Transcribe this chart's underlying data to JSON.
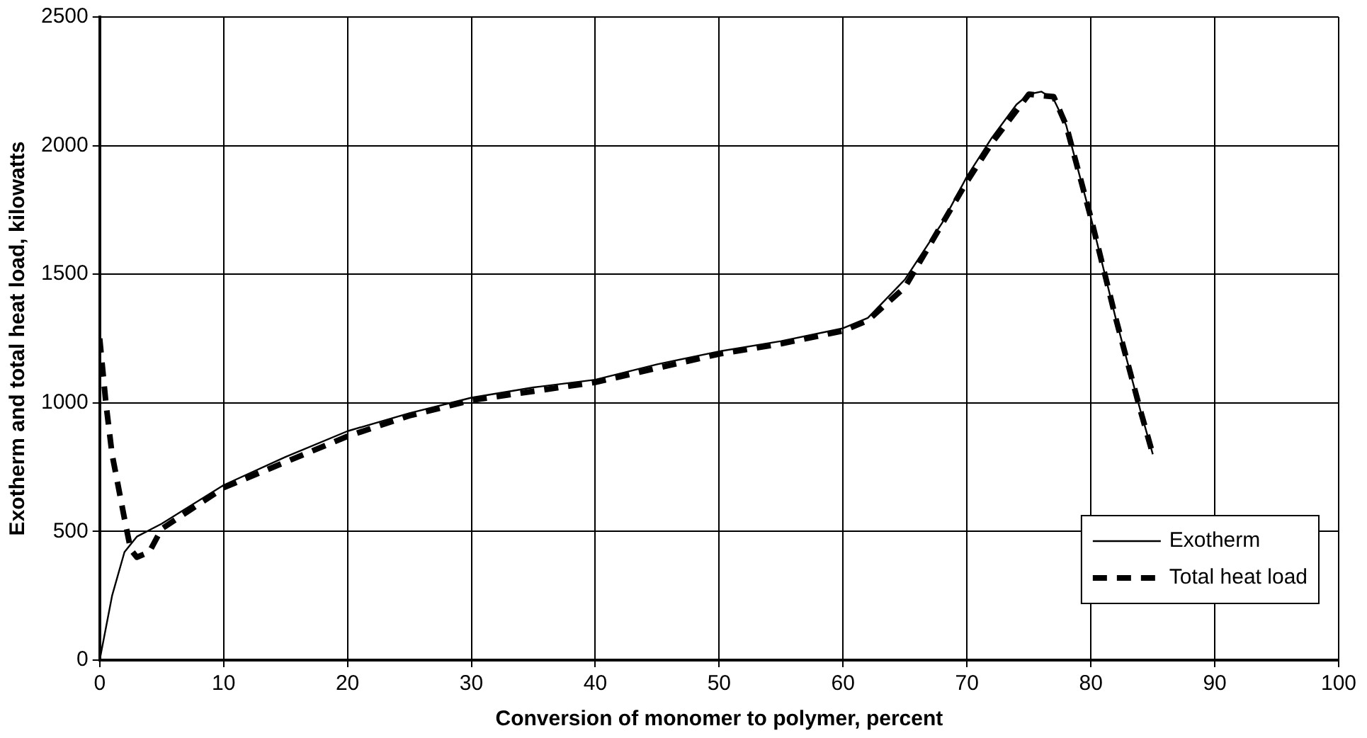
{
  "chart_data": {
    "type": "line",
    "xlabel": "Conversion of monomer to polymer, percent",
    "ylabel": "Exotherm and total heat load, kilowatts",
    "xlim": [
      0,
      100
    ],
    "xticks": [
      0,
      10,
      20,
      30,
      40,
      50,
      60,
      70,
      80,
      90,
      100
    ],
    "ylim": [
      0,
      2500
    ],
    "yticks": [
      0,
      500,
      1000,
      1500,
      2000,
      2500
    ],
    "grid": true,
    "legend": "bottom right",
    "marker": "none",
    "series": [
      {
        "name": "Exotherm",
        "color": "#000000",
        "line_style": "solid",
        "x": [
          0,
          1,
          2,
          3,
          5,
          10,
          15,
          20,
          25,
          30,
          35,
          40,
          45,
          50,
          55,
          60,
          62,
          65,
          68,
          70,
          72,
          74,
          75,
          76,
          77,
          78,
          80,
          82,
          84,
          85
        ],
        "values": [
          0,
          250,
          420,
          480,
          530,
          680,
          790,
          890,
          960,
          1020,
          1060,
          1090,
          1150,
          1200,
          1240,
          1290,
          1330,
          1480,
          1700,
          1880,
          2030,
          2160,
          2200,
          2210,
          2180,
          2080,
          1720,
          1330,
          970,
          800
        ]
      },
      {
        "name": "Total heat load",
        "color": "#000000",
        "line_style": "dashed",
        "x": [
          0,
          0.5,
          1,
          2,
          2.5,
          3,
          4,
          5,
          10,
          15,
          20,
          25,
          30,
          40,
          50,
          55,
          60,
          62,
          65,
          70,
          72,
          75,
          77,
          78,
          80,
          82,
          84,
          85
        ],
        "values": [
          1250,
          1000,
          800,
          550,
          430,
          400,
          420,
          510,
          670,
          770,
          870,
          950,
          1010,
          1080,
          1190,
          1230,
          1280,
          1320,
          1450,
          1860,
          2010,
          2200,
          2190,
          2080,
          1720,
          1330,
          970,
          800
        ]
      }
    ]
  }
}
